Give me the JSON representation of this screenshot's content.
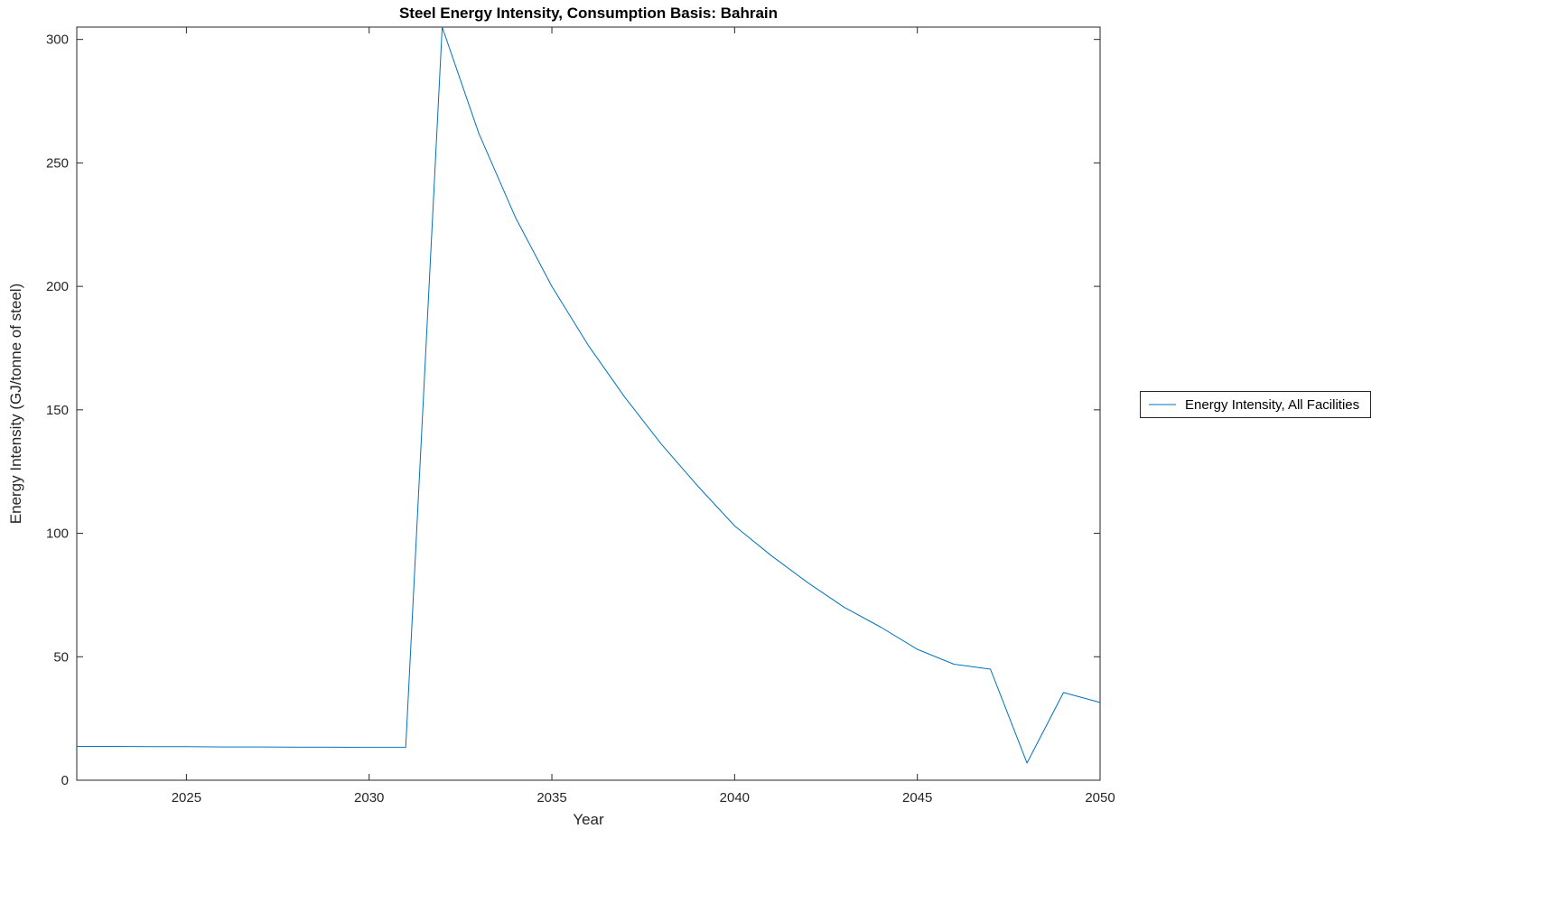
{
  "chart_data": {
    "type": "line",
    "title": "Steel Energy Intensity, Consumption Basis: Bahrain",
    "xlabel": "Year",
    "ylabel": "Energy Intensity (GJ/tonne of steel)",
    "xlim": [
      2022,
      2050
    ],
    "ylim": [
      0,
      305
    ],
    "xticks": [
      2025,
      2030,
      2035,
      2040,
      2045,
      2050
    ],
    "yticks": [
      0,
      50,
      100,
      150,
      200,
      250,
      300
    ],
    "grid": false,
    "legend_position": "outside-right",
    "series": [
      {
        "name": "Energy Intensity, All Facilities",
        "color": "#0072BD",
        "x": [
          2022,
          2023,
          2024,
          2025,
          2026,
          2027,
          2028,
          2029,
          2030,
          2031,
          2032,
          2033,
          2034,
          2035,
          2036,
          2037,
          2038,
          2039,
          2040,
          2041,
          2042,
          2043,
          2044,
          2045,
          2046,
          2047,
          2048,
          2049,
          2050
        ],
        "values": [
          13.7,
          13.7,
          13.6,
          13.6,
          13.5,
          13.5,
          13.4,
          13.4,
          13.3,
          13.3,
          305,
          262,
          228,
          200,
          176,
          155,
          136,
          119,
          103,
          91,
          80,
          70,
          62,
          53,
          47,
          45,
          7,
          35.5,
          31.5
        ]
      }
    ]
  }
}
